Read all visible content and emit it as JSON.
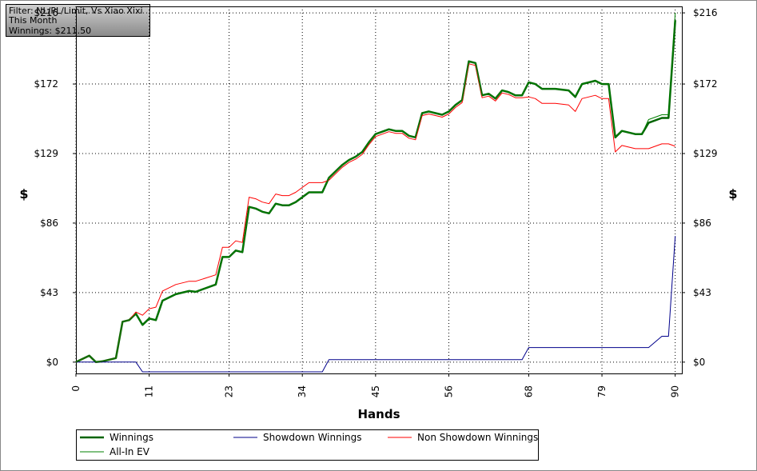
{
  "chart_data": {
    "type": "line",
    "info": [
      "Filter: NL/PL/Limit, Vs Xiao Xixi",
      "This Month",
      "Winnings: $211.50"
    ],
    "x_label": "Hands",
    "y_label": "$",
    "y2_label": "$",
    "x": [
      0,
      2,
      3,
      4,
      6,
      7,
      8,
      9,
      10,
      11,
      12,
      13,
      15,
      17,
      18,
      21,
      22,
      23,
      24,
      25,
      26,
      27,
      28,
      29,
      30,
      31,
      32,
      33,
      35,
      37,
      38,
      40,
      41,
      42,
      43,
      44,
      45,
      47,
      48,
      49,
      50,
      51,
      52,
      53,
      54,
      55,
      56,
      57,
      58,
      59,
      60,
      61,
      62,
      63,
      64,
      65,
      66,
      67,
      68,
      69,
      70,
      72,
      74,
      75,
      76,
      78,
      79,
      80,
      81,
      82,
      84,
      85,
      86,
      88,
      89,
      90
    ],
    "xlim": [
      0,
      91
    ],
    "xticks": [
      0,
      11,
      23,
      34,
      45,
      56,
      68,
      79,
      90
    ],
    "ylim": [
      -7,
      220
    ],
    "yticks": [
      {
        "value": 0,
        "label": "$0"
      },
      {
        "value": 43,
        "label": "$43"
      },
      {
        "value": 86,
        "label": "$86"
      },
      {
        "value": 129,
        "label": "$129"
      },
      {
        "value": 172,
        "label": "$172"
      },
      {
        "value": 216,
        "label": "$216"
      }
    ],
    "grid": true,
    "legend": "bottom",
    "series": [
      {
        "name": "Winnings",
        "color": "#006400",
        "width": 2.5,
        "values": [
          0,
          4,
          0,
          0.5,
          2.5,
          25,
          26,
          30,
          23,
          27,
          26,
          38,
          42,
          44,
          43.5,
          48,
          65,
          65,
          69,
          68,
          96,
          95,
          93,
          92,
          98,
          97,
          97,
          99,
          105,
          105,
          114,
          122,
          125,
          127,
          130,
          136,
          141,
          144,
          143,
          143,
          140,
          139,
          154,
          155,
          154,
          153,
          155,
          159,
          162,
          186,
          185,
          165,
          166,
          163,
          168,
          167,
          165,
          165,
          173,
          172,
          169,
          169,
          168,
          164,
          172,
          174,
          172,
          172,
          139,
          143,
          141,
          141,
          148,
          151,
          151,
          211.5
        ]
      },
      {
        "name": "Showdown Winnings",
        "color": "#00008b",
        "width": 1,
        "values": [
          0,
          0,
          0,
          0,
          0,
          0,
          0,
          0,
          -6,
          -6,
          -6,
          -6,
          -6,
          -6,
          -6,
          -6,
          -6,
          -6,
          -6,
          -6,
          -6,
          -6,
          -6,
          -6,
          -6,
          -6,
          -6,
          -6,
          -6,
          -6,
          1.5,
          1.5,
          1.5,
          1.5,
          1.5,
          1.5,
          1.5,
          1.5,
          1.5,
          1.5,
          1.5,
          1.5,
          1.5,
          1.5,
          1.5,
          1.5,
          1.5,
          1.5,
          1.5,
          1.5,
          1.5,
          1.5,
          1.5,
          1.5,
          1.5,
          1.5,
          1.5,
          1.5,
          9,
          9,
          9,
          9,
          9,
          9,
          9,
          9,
          9,
          9,
          9,
          9,
          9,
          9,
          9,
          16,
          16,
          78
        ]
      },
      {
        "name": "Non Showdown Winnings",
        "color": "#ff0000",
        "width": 1,
        "values": [
          0,
          4,
          0,
          0.5,
          2.5,
          25,
          26,
          31,
          29,
          33,
          34,
          44,
          48,
          50,
          50,
          54,
          71,
          71,
          75,
          74,
          102,
          101,
          99,
          98,
          104,
          103,
          103,
          105,
          111,
          111,
          112.5,
          120.5,
          123.5,
          125.5,
          128.5,
          134.5,
          139.5,
          142.5,
          141.5,
          141.5,
          138.5,
          137.5,
          152.5,
          153.5,
          152.5,
          151.5,
          153.5,
          157.5,
          160.5,
          184.5,
          183.5,
          163.5,
          164.5,
          161.5,
          166.5,
          165.5,
          163.5,
          163.5,
          164,
          163,
          160,
          160,
          159,
          155,
          163,
          165,
          163,
          163,
          130,
          134,
          132,
          132,
          132,
          135,
          135,
          133.5
        ]
      },
      {
        "name": "All-In EV",
        "color": "#008000",
        "width": 1,
        "values": [
          0,
          4,
          0,
          0.5,
          2.5,
          25,
          26,
          30,
          23,
          27,
          26,
          38,
          42,
          44,
          43.5,
          48,
          65,
          65,
          69,
          68,
          96,
          95,
          93,
          92,
          98,
          97,
          97,
          99,
          105,
          105,
          114,
          122,
          125,
          127,
          130,
          136,
          141,
          144,
          143,
          143,
          140,
          139,
          154,
          155,
          154,
          153,
          155,
          159,
          162,
          186,
          185,
          165,
          166,
          163,
          168,
          167,
          165,
          165,
          173,
          172,
          169,
          169,
          168,
          164,
          172,
          174,
          172,
          172,
          139,
          143,
          141,
          141,
          150,
          153,
          153,
          216
        ]
      }
    ]
  }
}
